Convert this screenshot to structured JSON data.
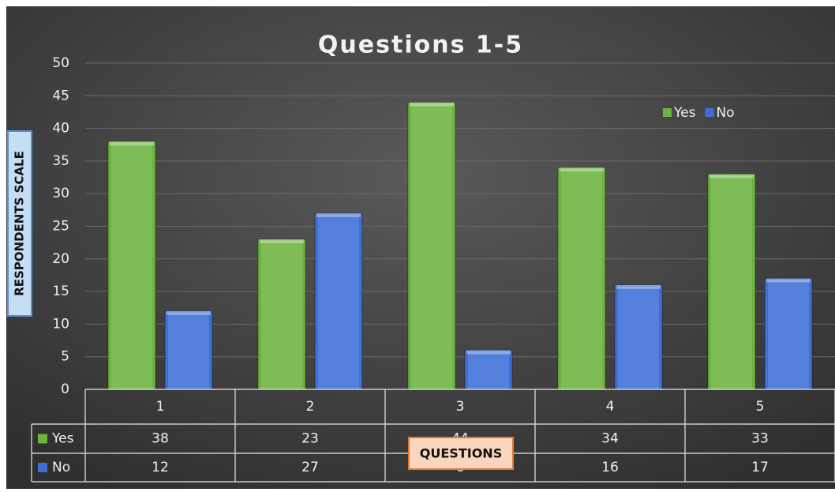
{
  "chart_data": {
    "type": "bar",
    "title": "Questions 1-5",
    "categories": [
      "1",
      "2",
      "3",
      "4",
      "5"
    ],
    "series": [
      {
        "name": "Yes",
        "color": "#6db33f",
        "values": [
          38,
          23,
          44,
          34,
          33
        ]
      },
      {
        "name": "No",
        "color": "#3d6fd9",
        "values": [
          12,
          27,
          6,
          16,
          17
        ]
      }
    ],
    "ylim": [
      0,
      50
    ],
    "yticks": [
      0,
      5,
      10,
      15,
      20,
      25,
      30,
      35,
      40,
      45,
      50
    ],
    "xlabel": "QUESTIONS",
    "ylabel": "RESPONDENTS SCALE",
    "grid": true,
    "legend": "top-right"
  }
}
